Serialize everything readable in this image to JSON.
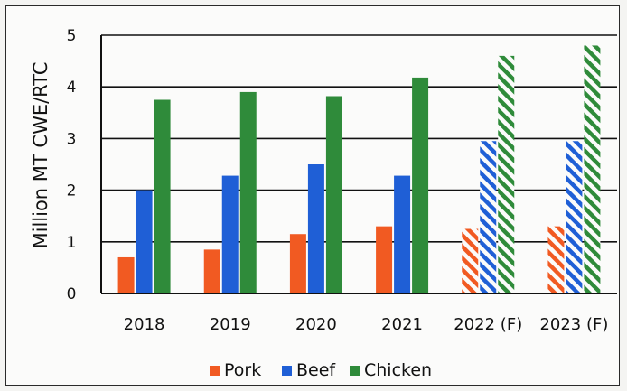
{
  "chart_data": {
    "type": "bar",
    "title": "",
    "xlabel": "",
    "ylabel": "Million MT CWE/RTC",
    "ylim": [
      0,
      5
    ],
    "yticks": [
      0,
      1,
      2,
      3,
      4,
      5
    ],
    "grid": true,
    "legend_position": "bottom",
    "categories": [
      "2018",
      "2019",
      "2020",
      "2021",
      "2022 (F)",
      "2023 (F)"
    ],
    "forecast_categories": [
      "2022 (F)",
      "2023 (F)"
    ],
    "series": [
      {
        "name": "Pork",
        "color": "#f15a22",
        "values": [
          0.7,
          0.85,
          1.15,
          1.3,
          1.25,
          1.3
        ]
      },
      {
        "name": "Beef",
        "color": "#1f5fd6",
        "values": [
          2.0,
          2.28,
          2.5,
          2.28,
          2.95,
          2.95
        ]
      },
      {
        "name": "Chicken",
        "color": "#2f8b3a",
        "values": [
          3.75,
          3.9,
          3.82,
          4.18,
          4.6,
          4.8
        ]
      }
    ]
  }
}
